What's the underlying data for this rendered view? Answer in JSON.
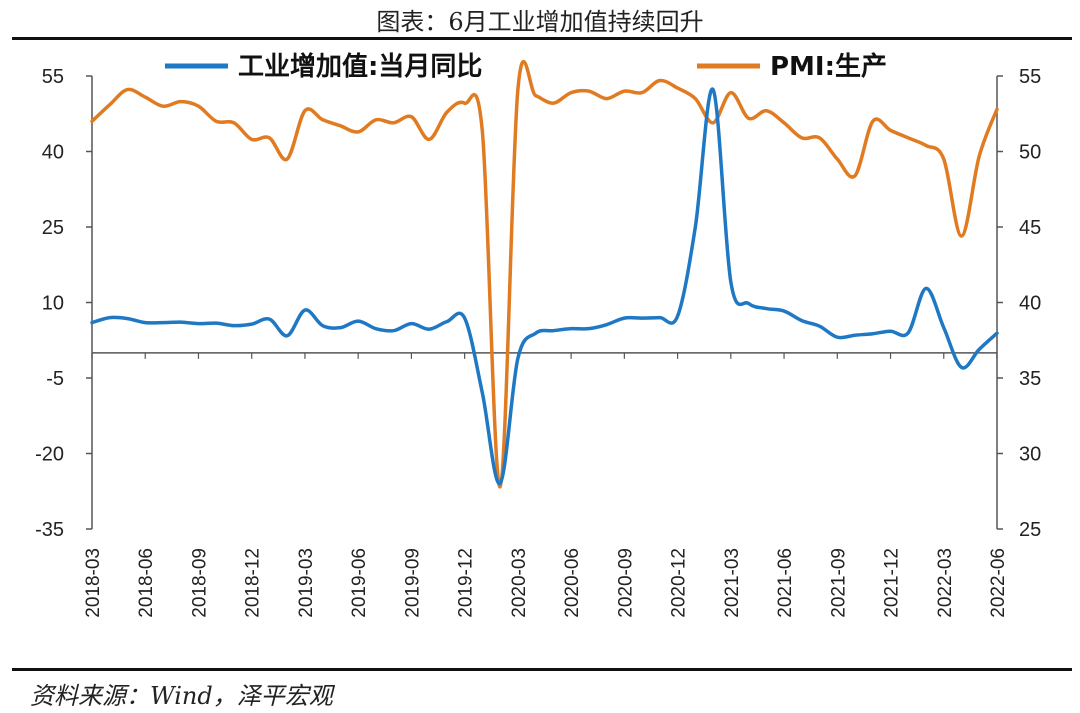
{
  "title": "图表：6月工业增加值持续回升",
  "source": "资料来源：Wind，泽平宏观",
  "colors": {
    "series1": "#1f78c4",
    "series2": "#e07b22",
    "axis": "#555555"
  },
  "chart_data": {
    "type": "line",
    "legend_position": "top",
    "grid": false,
    "x_ticks": [
      "2018-03",
      "2018-06",
      "2018-09",
      "2018-12",
      "2019-03",
      "2019-06",
      "2019-09",
      "2019-12",
      "2020-03",
      "2020-06",
      "2020-09",
      "2020-12",
      "2021-03",
      "2021-06",
      "2021-09",
      "2021-12",
      "2022-03",
      "2022-06"
    ],
    "y_left": {
      "range": [
        -35,
        55
      ],
      "ticks": [
        -35,
        -20,
        -5,
        10,
        25,
        40,
        55
      ]
    },
    "y_right": {
      "range": [
        25,
        55
      ],
      "ticks": [
        25,
        30,
        35,
        40,
        45,
        50,
        55
      ]
    },
    "x": [
      "2018-03",
      "2018-04",
      "2018-05",
      "2018-06",
      "2018-07",
      "2018-08",
      "2018-09",
      "2018-10",
      "2018-11",
      "2018-12",
      "2019-01",
      "2019-02",
      "2019-03",
      "2019-04",
      "2019-05",
      "2019-06",
      "2019-07",
      "2019-08",
      "2019-09",
      "2019-10",
      "2019-11",
      "2019-12",
      "2020-01",
      "2020-02",
      "2020-03",
      "2020-04",
      "2020-05",
      "2020-06",
      "2020-07",
      "2020-08",
      "2020-09",
      "2020-10",
      "2020-11",
      "2020-12",
      "2021-01",
      "2021-02",
      "2021-03",
      "2021-04",
      "2021-05",
      "2021-06",
      "2021-07",
      "2021-08",
      "2021-09",
      "2021-10",
      "2021-11",
      "2021-12",
      "2022-01",
      "2022-02",
      "2022-03",
      "2022-04",
      "2022-05",
      "2022-06"
    ],
    "series": [
      {
        "name": "工业增加值:当月同比",
        "axis": "left",
        "values": [
          6.0,
          7.0,
          6.8,
          6.0,
          6.0,
          6.1,
          5.8,
          5.9,
          5.4,
          5.7,
          6.7,
          3.4,
          8.5,
          5.4,
          5.0,
          6.3,
          4.8,
          4.4,
          5.8,
          4.7,
          6.2,
          6.9,
          -8.0,
          -25.9,
          -1.1,
          3.9,
          4.4,
          4.8,
          4.8,
          5.6,
          6.9,
          6.9,
          7.0,
          7.3,
          25.0,
          52.3,
          14.1,
          9.8,
          8.8,
          8.3,
          6.4,
          5.3,
          3.1,
          3.5,
          3.8,
          4.3,
          4.0,
          12.8,
          5.0,
          -2.9,
          0.7,
          3.9
        ]
      },
      {
        "name": "PMI:生产",
        "axis": "right",
        "values": [
          52.0,
          53.1,
          54.1,
          53.6,
          53.0,
          53.3,
          53.0,
          52.0,
          51.9,
          50.8,
          50.9,
          49.5,
          52.7,
          52.1,
          51.7,
          51.3,
          52.1,
          51.9,
          52.3,
          50.8,
          52.6,
          53.2,
          51.3,
          27.8,
          54.1,
          53.7,
          53.2,
          53.9,
          54.0,
          53.5,
          54.0,
          53.9,
          54.7,
          54.2,
          53.5,
          51.9,
          53.9,
          52.2,
          52.7,
          51.9,
          50.9,
          50.9,
          49.5,
          48.4,
          52.0,
          51.4,
          50.9,
          50.4,
          49.5,
          44.4,
          49.7,
          52.8
        ]
      }
    ]
  }
}
